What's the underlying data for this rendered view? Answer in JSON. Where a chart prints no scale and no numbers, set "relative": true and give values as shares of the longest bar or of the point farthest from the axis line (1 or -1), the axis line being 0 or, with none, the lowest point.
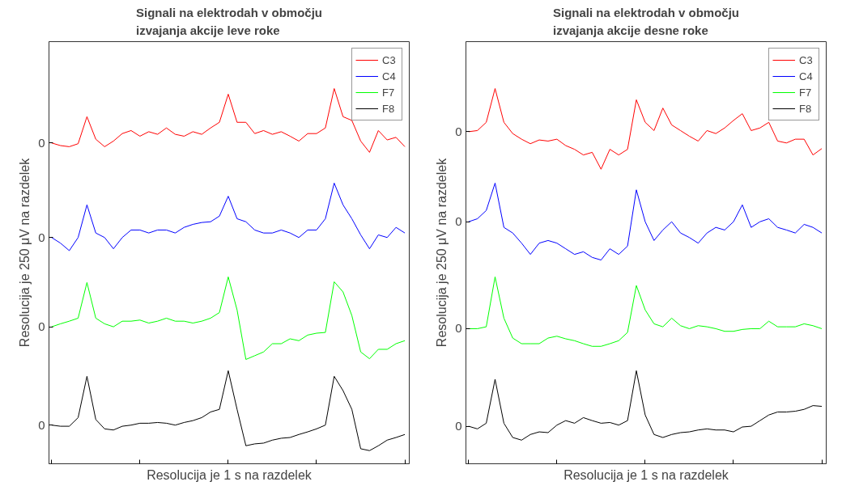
{
  "chart_data": [
    {
      "type": "line",
      "title": "Signali na elektrodah v območju\nizvajanja akcije leve roke",
      "xlabel": "Resolucija je 1 s na razdelek",
      "ylabel": "Resolucija je 250 μV na razdelek",
      "relative": true,
      "tick_labels": "y",
      "grid": false,
      "legend": "top right",
      "line_style": "solid",
      "annotations": [
        "0",
        "0",
        "0",
        "0"
      ],
      "categories": [
        null,
        null,
        null,
        null,
        null,
        null,
        null,
        null,
        null,
        null,
        null,
        null,
        null,
        null,
        null,
        null,
        null,
        null,
        null,
        null,
        null,
        null,
        null,
        null,
        null,
        null,
        null,
        null,
        null,
        null,
        null,
        null,
        null,
        null,
        null,
        null,
        null,
        null,
        null,
        null,
        null
      ],
      "series": [
        {
          "name": "C3",
          "color": "#ff0000",
          "values": [
            0.855,
            0.848,
            0.845,
            0.853,
            0.925,
            0.865,
            0.845,
            0.86,
            0.88,
            0.888,
            0.873,
            0.885,
            0.878,
            0.895,
            0.878,
            0.873,
            0.885,
            0.878,
            0.895,
            0.91,
            0.985,
            0.91,
            0.91,
            0.88,
            0.888,
            0.878,
            0.885,
            0.873,
            0.86,
            0.88,
            0.88,
            0.895,
            1.0,
            0.925,
            0.915,
            0.86,
            0.83,
            0.888,
            0.863,
            0.87,
            0.845
          ]
        },
        {
          "name": "C4",
          "color": "#0000ff",
          "values": [
            0.603,
            0.588,
            0.568,
            0.603,
            0.69,
            0.615,
            0.603,
            0.573,
            0.603,
            0.623,
            0.623,
            0.615,
            0.623,
            0.623,
            0.615,
            0.63,
            0.638,
            0.643,
            0.645,
            0.66,
            0.713,
            0.653,
            0.645,
            0.623,
            0.615,
            0.615,
            0.623,
            0.615,
            0.603,
            0.623,
            0.623,
            0.653,
            0.748,
            0.69,
            0.653,
            0.61,
            0.573,
            0.61,
            0.603,
            0.63,
            0.615
          ]
        },
        {
          "name": "F7",
          "color": "#00ff00",
          "values": [
            0.365,
            0.373,
            0.38,
            0.388,
            0.483,
            0.388,
            0.373,
            0.365,
            0.38,
            0.38,
            0.383,
            0.375,
            0.38,
            0.388,
            0.38,
            0.38,
            0.375,
            0.38,
            0.388,
            0.403,
            0.498,
            0.41,
            0.278,
            0.288,
            0.298,
            0.32,
            0.32,
            0.333,
            0.328,
            0.343,
            0.348,
            0.35,
            0.485,
            0.458,
            0.395,
            0.298,
            0.28,
            0.305,
            0.305,
            0.32,
            0.328
          ]
        },
        {
          "name": "F8",
          "color": "#000000",
          "values": [
            0.103,
            0.1,
            0.1,
            0.123,
            0.233,
            0.118,
            0.093,
            0.09,
            0.1,
            0.103,
            0.108,
            0.108,
            0.11,
            0.108,
            0.103,
            0.11,
            0.115,
            0.123,
            0.138,
            0.145,
            0.248,
            0.145,
            0.048,
            0.053,
            0.055,
            0.063,
            0.068,
            0.07,
            0.078,
            0.085,
            0.093,
            0.103,
            0.233,
            0.195,
            0.145,
            0.04,
            0.035,
            0.048,
            0.063,
            0.07,
            0.078
          ]
        }
      ]
    },
    {
      "type": "line",
      "title": "Signali na elektrodah v območju\nizvajanja akcije desne roke",
      "xlabel": "Resolucija je 1 s na razdelek",
      "ylabel": "Resolucija je 250 μV na razdelek",
      "relative": true,
      "tick_labels": "y",
      "grid": false,
      "legend": "top right",
      "line_style": "solid",
      "annotations": [
        "0",
        "0",
        "0",
        "0"
      ],
      "categories": [
        null,
        null,
        null,
        null,
        null,
        null,
        null,
        null,
        null,
        null,
        null,
        null,
        null,
        null,
        null,
        null,
        null,
        null,
        null,
        null,
        null,
        null,
        null,
        null,
        null,
        null,
        null,
        null,
        null,
        null,
        null,
        null,
        null,
        null,
        null,
        null,
        null,
        null,
        null,
        null,
        null
      ],
      "series": [
        {
          "name": "C3",
          "color": "#ff0000",
          "values": [
            0.885,
            0.888,
            0.91,
            1.0,
            0.91,
            0.88,
            0.865,
            0.853,
            0.863,
            0.86,
            0.865,
            0.848,
            0.838,
            0.823,
            0.83,
            0.785,
            0.838,
            0.823,
            0.838,
            0.97,
            0.91,
            0.888,
            0.948,
            0.903,
            0.888,
            0.873,
            0.86,
            0.888,
            0.88,
            0.895,
            0.915,
            0.933,
            0.888,
            0.895,
            0.91,
            0.86,
            0.855,
            0.865,
            0.865,
            0.823,
            0.84
          ]
        },
        {
          "name": "C4",
          "color": "#0000ff",
          "values": [
            0.645,
            0.653,
            0.675,
            0.748,
            0.63,
            0.615,
            0.588,
            0.558,
            0.588,
            0.595,
            0.588,
            0.573,
            0.558,
            0.565,
            0.55,
            0.543,
            0.573,
            0.558,
            0.58,
            0.73,
            0.645,
            0.595,
            0.623,
            0.645,
            0.615,
            0.603,
            0.588,
            0.615,
            0.63,
            0.623,
            0.645,
            0.69,
            0.63,
            0.645,
            0.653,
            0.63,
            0.623,
            0.615,
            0.638,
            0.63,
            0.615
          ]
        },
        {
          "name": "F7",
          "color": "#00ff00",
          "values": [
            0.36,
            0.36,
            0.365,
            0.498,
            0.388,
            0.335,
            0.32,
            0.32,
            0.32,
            0.335,
            0.34,
            0.333,
            0.328,
            0.32,
            0.313,
            0.313,
            0.32,
            0.328,
            0.35,
            0.475,
            0.41,
            0.373,
            0.365,
            0.388,
            0.368,
            0.36,
            0.368,
            0.365,
            0.36,
            0.353,
            0.353,
            0.358,
            0.36,
            0.36,
            0.38,
            0.365,
            0.365,
            0.365,
            0.373,
            0.368,
            0.36
          ]
        },
        {
          "name": "F8",
          "color": "#000000",
          "values": [
            0.1,
            0.093,
            0.108,
            0.225,
            0.108,
            0.07,
            0.063,
            0.078,
            0.085,
            0.083,
            0.103,
            0.115,
            0.108,
            0.123,
            0.115,
            0.108,
            0.11,
            0.103,
            0.115,
            0.248,
            0.13,
            0.078,
            0.07,
            0.078,
            0.083,
            0.085,
            0.09,
            0.093,
            0.09,
            0.09,
            0.085,
            0.098,
            0.1,
            0.115,
            0.13,
            0.138,
            0.138,
            0.14,
            0.145,
            0.155,
            0.153
          ]
        }
      ]
    }
  ]
}
